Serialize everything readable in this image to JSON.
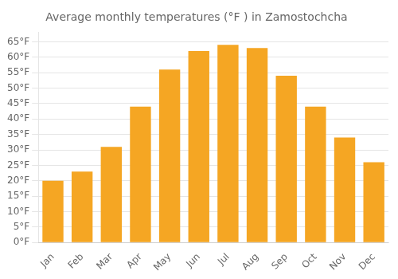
{
  "chart_data": {
    "type": "bar",
    "title": "Average monthly temperatures (°F ) in Zamostochcha",
    "categories": [
      "Jan",
      "Feb",
      "Mar",
      "Apr",
      "May",
      "Jun",
      "Jul",
      "Aug",
      "Sep",
      "Oct",
      "Nov",
      "Dec"
    ],
    "values": [
      20,
      23,
      31,
      44,
      56,
      62,
      64,
      63,
      54,
      44,
      34,
      26
    ],
    "color": "#F5A623",
    "ylim": [
      0,
      68
    ],
    "yticks": [
      {
        "value": 0,
        "label": "0°F"
      },
      {
        "value": 5,
        "label": "5°F"
      },
      {
        "value": 10,
        "label": "10°F"
      },
      {
        "value": 15,
        "label": "15°F"
      },
      {
        "value": 20,
        "label": "20°F"
      },
      {
        "value": 25,
        "label": "25°F"
      },
      {
        "value": 30,
        "label": "30°F"
      },
      {
        "value": 35,
        "label": "35°F"
      },
      {
        "value": 40,
        "label": "40°F"
      },
      {
        "value": 45,
        "label": "45°F"
      },
      {
        "value": 50,
        "label": "50°F"
      },
      {
        "value": 55,
        "label": "55°F"
      },
      {
        "value": 60,
        "label": "60°F"
      },
      {
        "value": 65,
        "label": "65°F"
      }
    ],
    "grid": true
  }
}
